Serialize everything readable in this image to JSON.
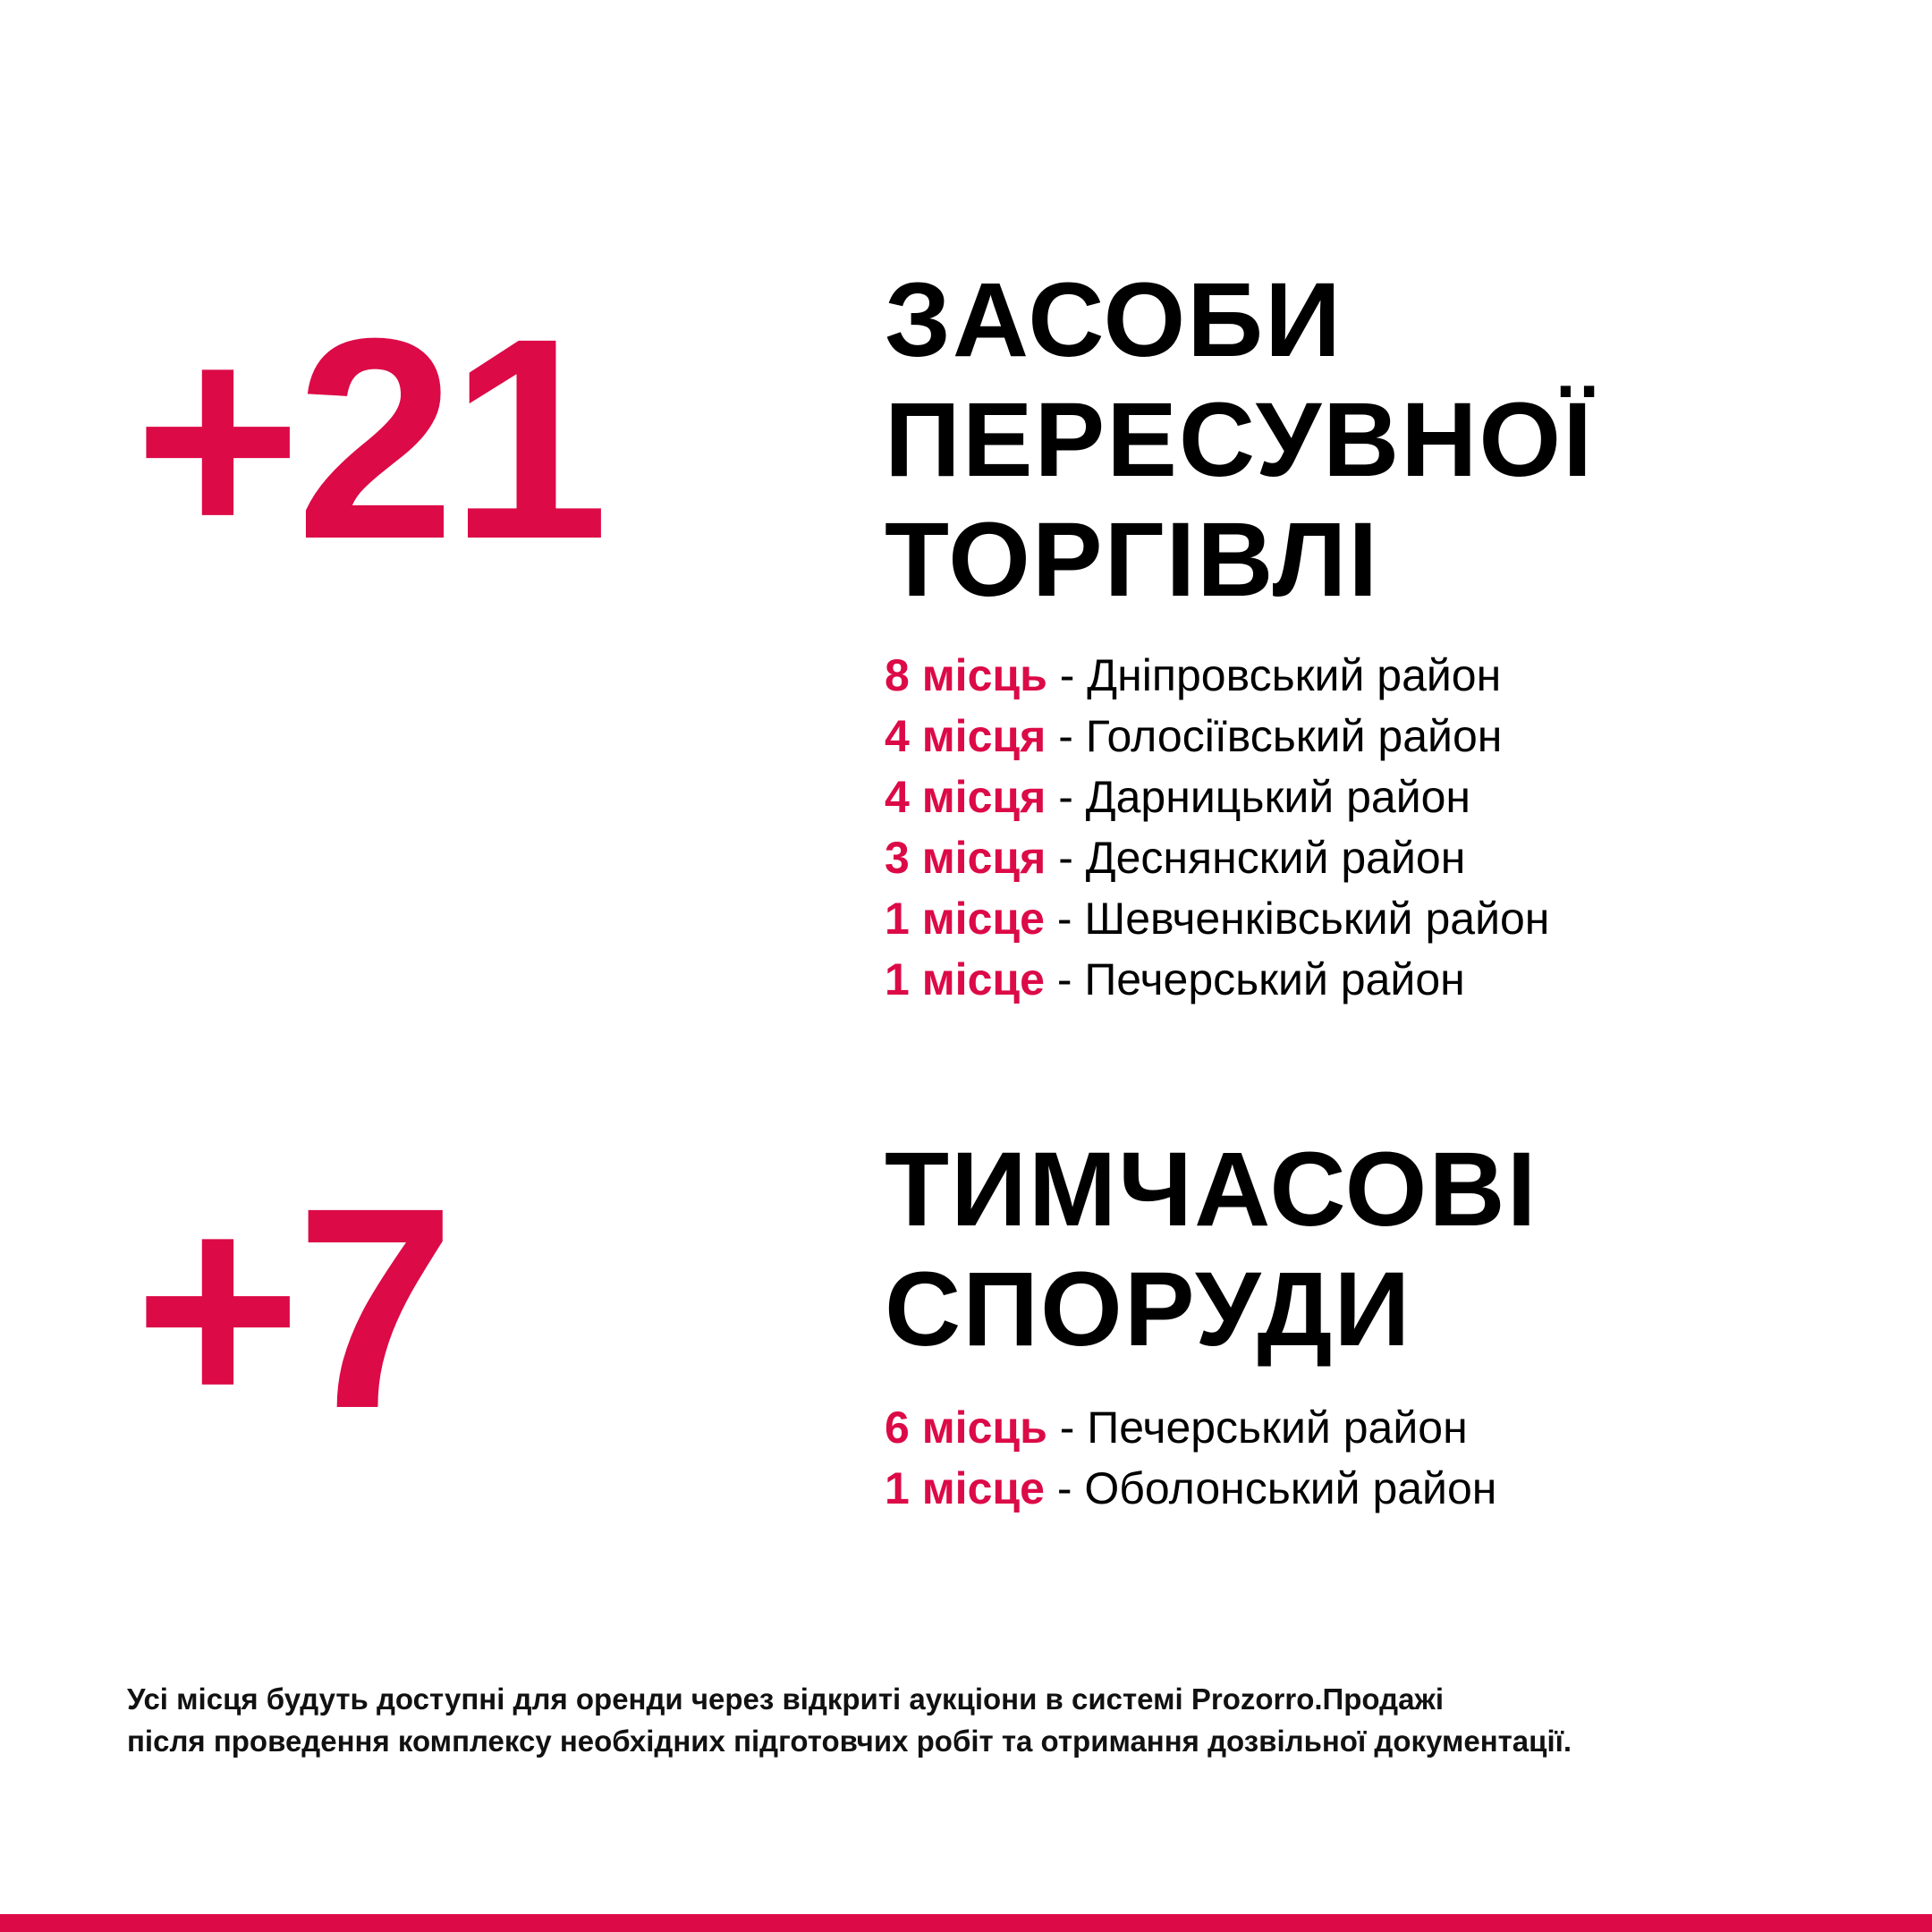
{
  "colors": {
    "accent": "#DC0A47",
    "text": "#000000"
  },
  "sections": [
    {
      "count": "+21",
      "title_lines": [
        "ЗАСОБИ",
        "ПЕРЕСУВНОЇ",
        "ТОРГІВЛІ"
      ],
      "items": [
        {
          "count": "8 місць",
          "district": " - Дніпровський район"
        },
        {
          "count": "4 місця",
          "district": " - Голосіївський район"
        },
        {
          "count": "4 місця",
          "district": " - Дарницький район"
        },
        {
          "count": "3 місця",
          "district": " - Деснянский район"
        },
        {
          "count": "1 місце",
          "district": " - Шевченківський район"
        },
        {
          "count": "1 місце",
          "district": " - Печерський район"
        }
      ]
    },
    {
      "count": "+7",
      "title_lines": [
        "ТИМЧАСОВІ",
        "СПОРУДИ"
      ],
      "items": [
        {
          "count": "6 місць",
          "district": " - Печерський район"
        },
        {
          "count": "1 місце",
          "district": " - Оболонський район"
        }
      ]
    }
  ],
  "footer": {
    "line1_prefix": "Усі місця будуть доступні для оренди через відкриті аукціони в системі ",
    "line1_brand": "Prozorro.Продажі",
    "line2": "після проведення комплексу необхідних підготовчих робіт та отримання дозвільної документації."
  }
}
